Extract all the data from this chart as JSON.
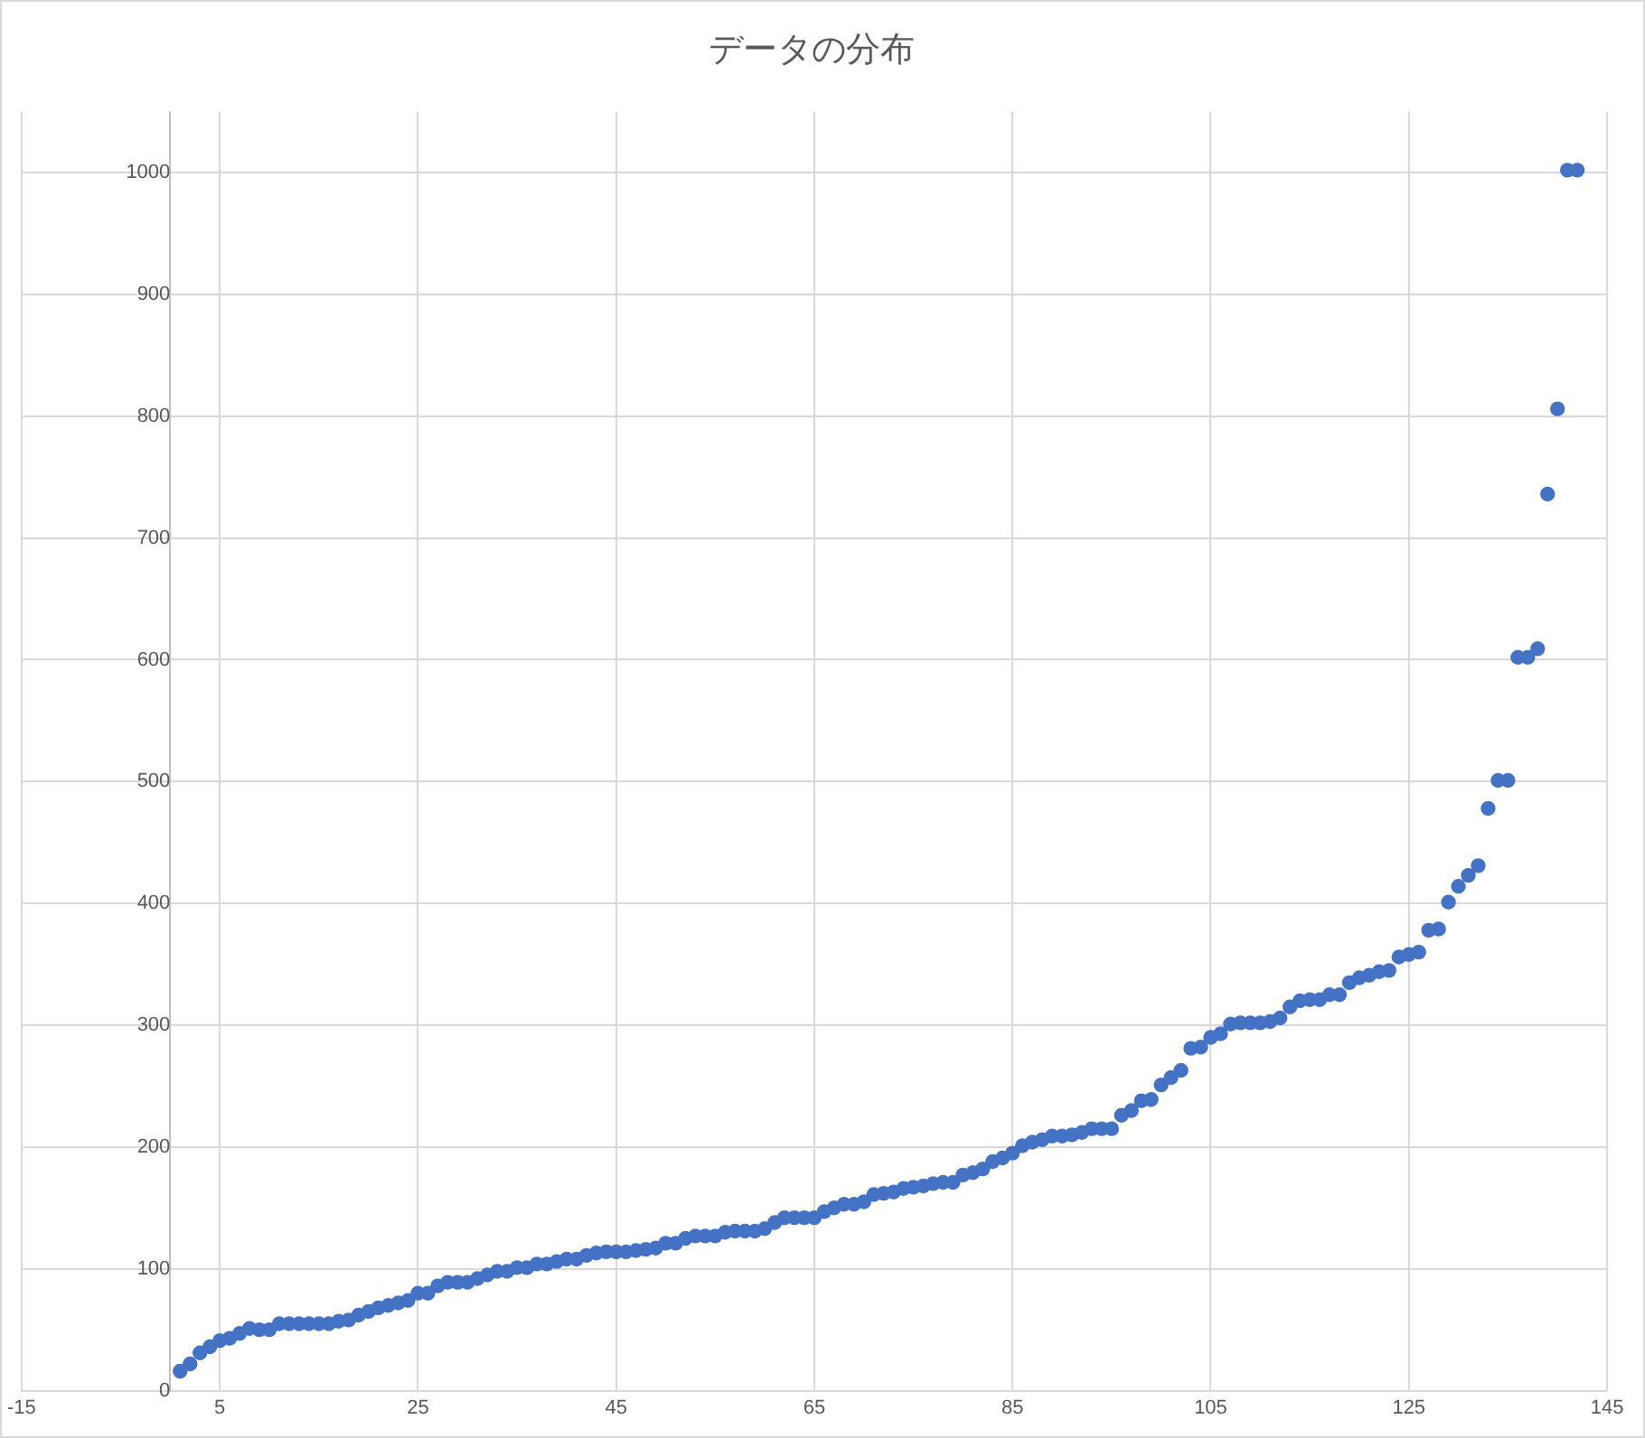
{
  "chart_data": {
    "type": "scatter",
    "title": "データの分布",
    "x": [
      1,
      2,
      3,
      4,
      5,
      6,
      7,
      8,
      9,
      10,
      11,
      12,
      13,
      14,
      15,
      16,
      17,
      18,
      19,
      20,
      21,
      22,
      23,
      24,
      25,
      26,
      27,
      28,
      29,
      30,
      31,
      32,
      33,
      34,
      35,
      36,
      37,
      38,
      39,
      40,
      41,
      42,
      43,
      44,
      45,
      46,
      47,
      48,
      49,
      50,
      51,
      52,
      53,
      54,
      55,
      56,
      57,
      58,
      59,
      60,
      61,
      62,
      63,
      64,
      65,
      66,
      67,
      68,
      69,
      70,
      71,
      72,
      73,
      74,
      75,
      76,
      77,
      78,
      79,
      80,
      81,
      82,
      83,
      84,
      85,
      86,
      87,
      88,
      89,
      90,
      91,
      92,
      93,
      94,
      95,
      96,
      97,
      98,
      99,
      100,
      101,
      102,
      103,
      104,
      105,
      106,
      107,
      108,
      109,
      110,
      111,
      112,
      113,
      114,
      115,
      116,
      117,
      118,
      119,
      120,
      121,
      122,
      123,
      124,
      125,
      126,
      127,
      128,
      129,
      130,
      131,
      132,
      133,
      134,
      135,
      136,
      137,
      138,
      139,
      140,
      141,
      142
    ],
    "series": [
      {
        "color": "#4472c4",
        "values": [
          16,
          22,
          31,
          36,
          41,
          43,
          47,
          51,
          50,
          50,
          55,
          55,
          55,
          55,
          55,
          55,
          57,
          58,
          62,
          65,
          68,
          70,
          72,
          74,
          80,
          80,
          86,
          89,
          89,
          89,
          92,
          95,
          98,
          98,
          101,
          101,
          104,
          104,
          106,
          108,
          108,
          111,
          113,
          114,
          114,
          114,
          115,
          116,
          117,
          121,
          121,
          125,
          127,
          127,
          127,
          130,
          131,
          131,
          131,
          133,
          138,
          142,
          142,
          142,
          142,
          147,
          150,
          153,
          153,
          155,
          161,
          162,
          163,
          166,
          167,
          168,
          170,
          171,
          171,
          177,
          179,
          182,
          188,
          191,
          195,
          201,
          204,
          206,
          209,
          209,
          210,
          212,
          215,
          215,
          215,
          226,
          230,
          238,
          239,
          251,
          257,
          263,
          281,
          282,
          290,
          293,
          301,
          302,
          302,
          302,
          303,
          306,
          315,
          320,
          321,
          321,
          325,
          325,
          335,
          339,
          341,
          344,
          345,
          356,
          358,
          360,
          378,
          379,
          401,
          414,
          423,
          431,
          478,
          501,
          501,
          602,
          602,
          609,
          736,
          806,
          1002,
          1002
        ]
      }
    ],
    "xlim": [
      -15,
      145
    ],
    "xticks": [
      -15,
      5,
      25,
      45,
      65,
      85,
      105,
      125,
      145
    ],
    "ylim": [
      0,
      1050
    ],
    "yticks": [
      0,
      100,
      200,
      300,
      400,
      500,
      600,
      700,
      800,
      900,
      1000
    ],
    "grid": true,
    "marker": "circle",
    "legend": false
  }
}
